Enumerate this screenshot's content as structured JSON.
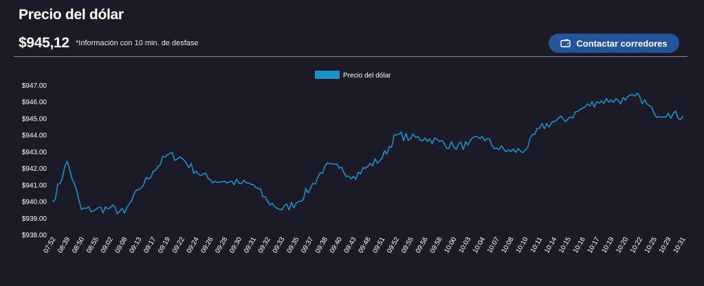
{
  "header": {
    "title": "Precio del dólar",
    "price": "$945,12",
    "note": "*Información con 10 min. de desfase"
  },
  "contact_button": {
    "label": "Contactar corredores",
    "icon": "wallet-icon"
  },
  "colors": {
    "background": "#1b1b27",
    "line": "#1e90c8",
    "button": "#26549a"
  },
  "chart_data": {
    "type": "line",
    "title": "",
    "xlabel": "",
    "ylabel": "",
    "legend": {
      "position": "top-center",
      "entries": [
        "Precio del dólar"
      ]
    },
    "grid": false,
    "ylim": [
      938,
      947
    ],
    "y_ticks": [
      "$938.00",
      "$939.00",
      "$940.00",
      "$941.00",
      "$942.00",
      "$943.00",
      "$944.00",
      "$945.00",
      "$946.00",
      "$947.00"
    ],
    "categories": [
      "07:52",
      "08:39",
      "08:50",
      "08:55",
      "09:02",
      "09:08",
      "09:13",
      "09:17",
      "09:19",
      "09:22",
      "09:24",
      "09:26",
      "09:28",
      "09:30",
      "09:31",
      "09:32",
      "09:33",
      "09:35",
      "09:37",
      "09:38",
      "09:40",
      "09:43",
      "09:48",
      "09:51",
      "09:52",
      "09:55",
      "09:56",
      "09:58",
      "10:00",
      "10:03",
      "10:04",
      "10:07",
      "10:08",
      "10:10",
      "10:11",
      "10:14",
      "10:15",
      "10:16",
      "10:17",
      "10:19",
      "10:20",
      "10:22",
      "10:25",
      "10:29",
      "10:31"
    ],
    "series": [
      {
        "name": "Precio del dólar",
        "values": [
          940.0,
          942.4,
          939.5,
          939.5,
          939.6,
          939.3,
          940.7,
          941.8,
          942.8,
          942.6,
          941.8,
          941.3,
          941.2,
          941.1,
          941.0,
          940.0,
          939.5,
          939.9,
          940.8,
          942.1,
          942.0,
          941.5,
          942.1,
          942.6,
          944.0,
          943.8,
          943.8,
          943.6,
          943.3,
          943.4,
          943.9,
          943.2,
          943.0,
          943.1,
          944.4,
          944.8,
          945.0,
          945.6,
          946.0,
          946.1,
          946.1,
          946.3,
          945.3,
          945.3,
          945.1
        ]
      }
    ]
  }
}
